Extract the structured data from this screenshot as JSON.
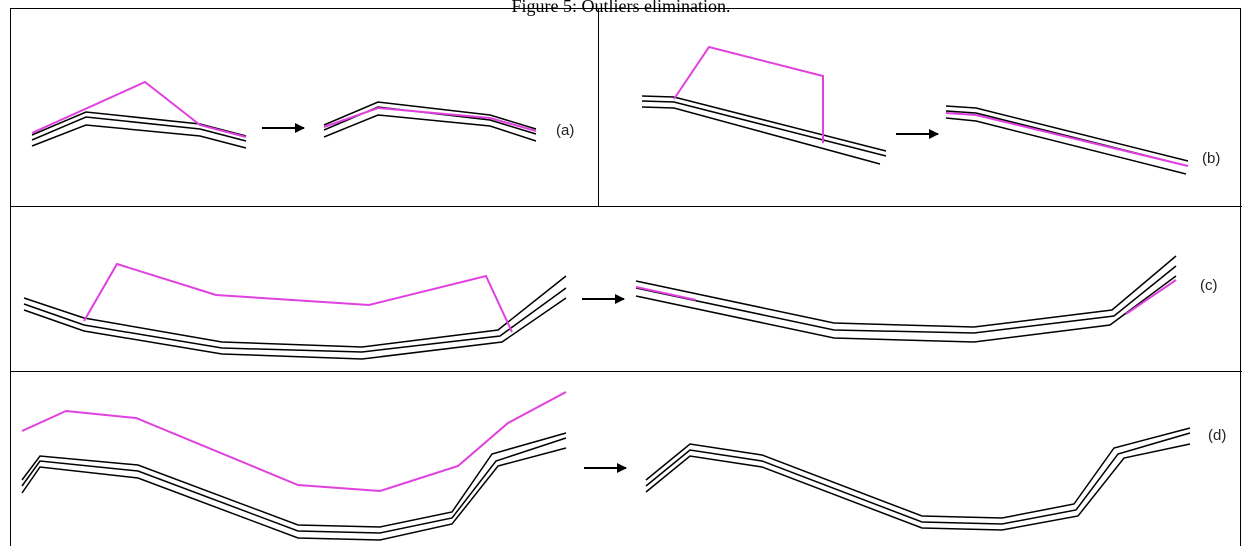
{
  "caption": "Figure 5: Outliers elimination.",
  "colors": {
    "outlier": "#e040e0",
    "track": "#000000",
    "frame": "#000000"
  },
  "panels": [
    {
      "id": "a",
      "label": "(a)"
    },
    {
      "id": "b",
      "label": "(b)"
    },
    {
      "id": "c",
      "label": "(c)"
    },
    {
      "id": "d",
      "label": "(d)"
    }
  ]
}
